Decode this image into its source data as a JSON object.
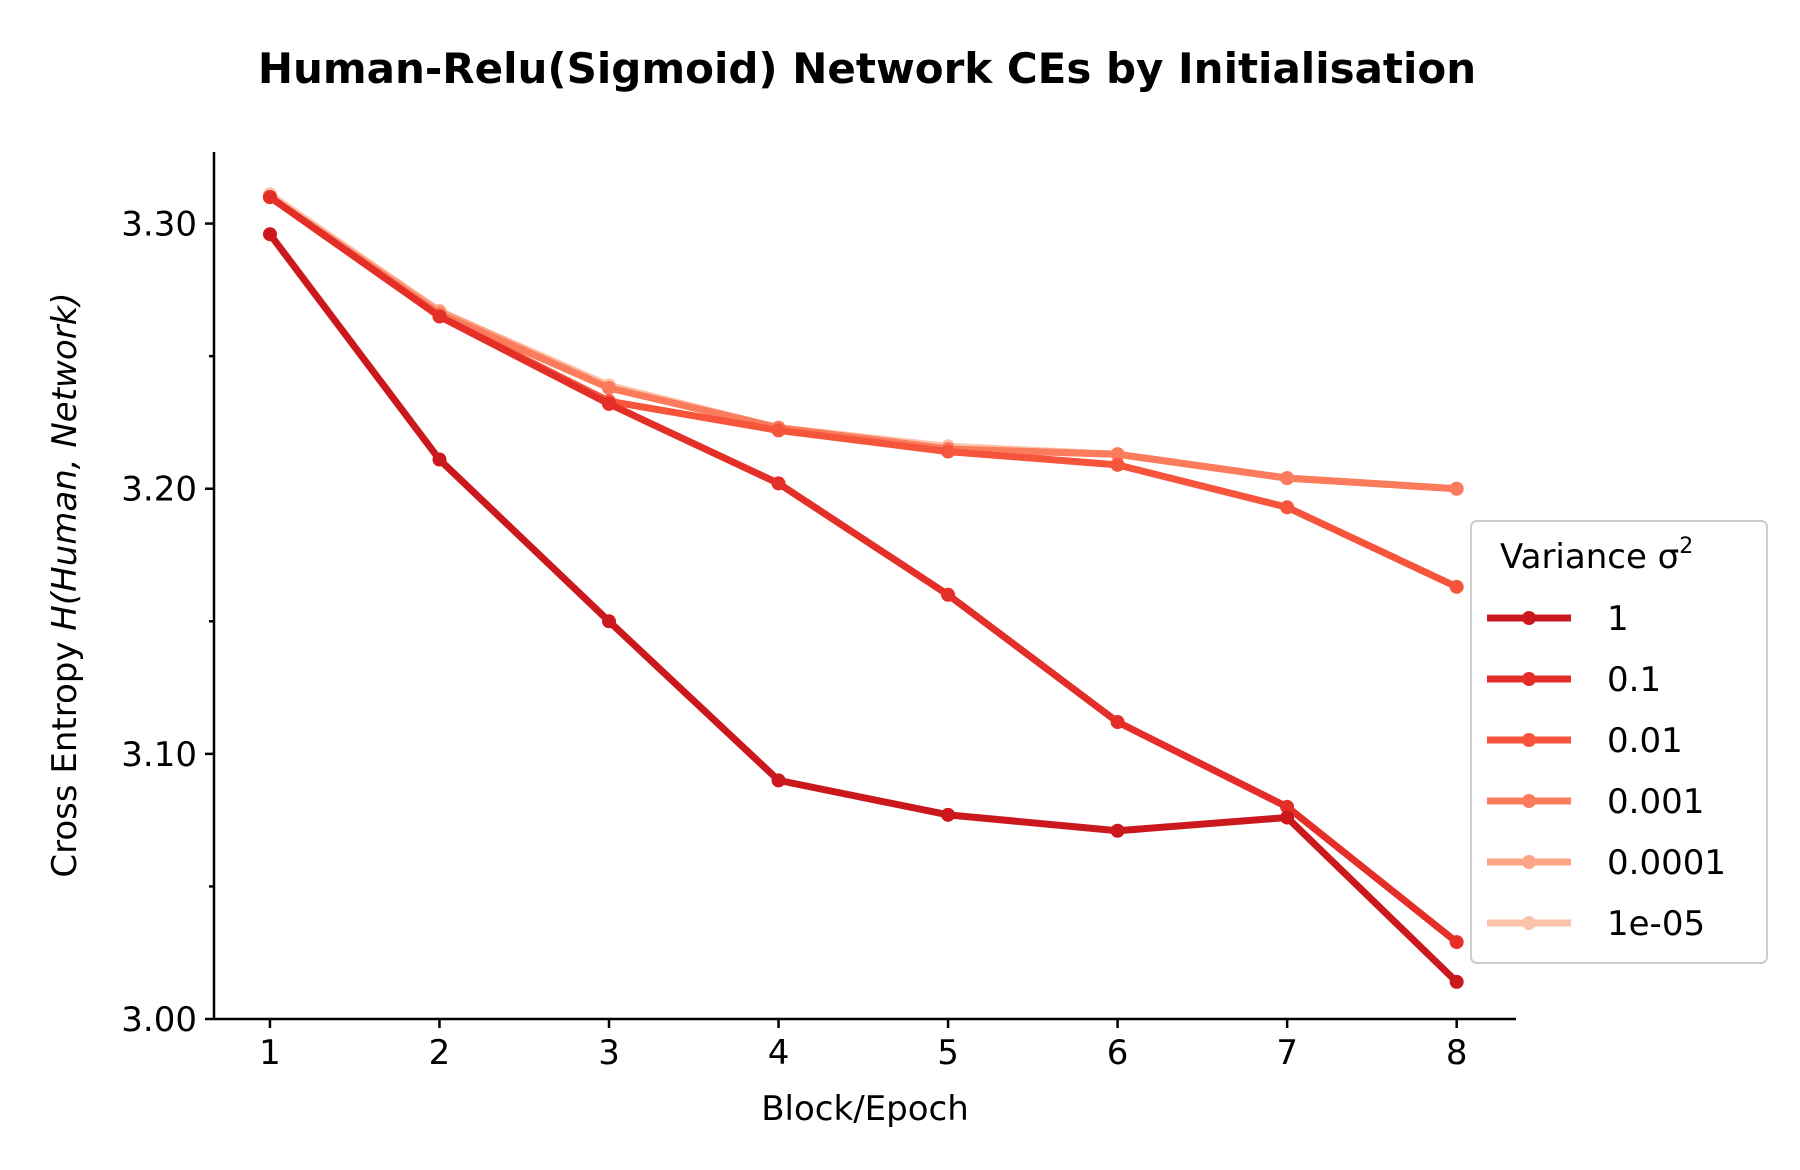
{
  "chart_data": {
    "type": "line",
    "title": "Human-Relu(Sigmoid) Network CEs by Initialisation",
    "xlabel": "Block/Epoch",
    "ylabel_prefix": "Cross Entropy ",
    "ylabel_math": "H(Human, Network)",
    "x": [
      1,
      2,
      3,
      4,
      5,
      6,
      7,
      8
    ],
    "xticks": [
      "1",
      "2",
      "3",
      "4",
      "5",
      "6",
      "7",
      "8"
    ],
    "yticks": [
      3.0,
      3.1,
      3.2,
      3.3
    ],
    "ytick_labels": [
      "3.00",
      "3.10",
      "3.20",
      "3.30"
    ],
    "yminor_ticks": [
      3.05,
      3.15,
      3.25
    ],
    "xlim": [
      0.67,
      8.35
    ],
    "ylim": [
      3.0,
      3.327
    ],
    "grid": false,
    "legend_title": "Variance σ",
    "legend_title_sup": "2",
    "legend_placement": "center-right",
    "series": [
      {
        "name": "1",
        "color": "#cb181d",
        "values": [
          3.296,
          3.211,
          3.15,
          3.09,
          3.077,
          3.071,
          3.076,
          3.014
        ]
      },
      {
        "name": "0.1",
        "color": "#e32f27",
        "values": [
          3.31,
          3.265,
          3.232,
          3.202,
          3.16,
          3.112,
          3.08,
          3.029
        ]
      },
      {
        "name": "0.01",
        "color": "#f6553c",
        "values": [
          3.31,
          3.265,
          3.233,
          3.222,
          3.214,
          3.209,
          3.193,
          3.163
        ]
      },
      {
        "name": "0.001",
        "color": "#fb7c5c",
        "values": [
          3.31,
          3.266,
          3.238,
          3.223,
          3.215,
          3.213,
          3.204,
          3.2
        ]
      },
      {
        "name": "0.0001",
        "color": "#fca486",
        "values": [
          3.31,
          3.267,
          3.238,
          3.223,
          3.215,
          3.213,
          3.204,
          3.2
        ]
      },
      {
        "name": "1e-05",
        "color": "#fcc4ad",
        "values": [
          3.311,
          3.267,
          3.239,
          3.223,
          3.216,
          3.213,
          3.204,
          3.2
        ]
      }
    ]
  }
}
